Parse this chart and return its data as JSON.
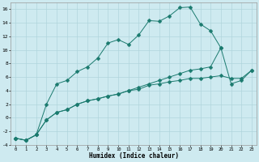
{
  "xlabel": "Humidex (Indice chaleur)",
  "background_color": "#ceeaf0",
  "grid_color": "#b0d5dc",
  "line_color": "#1a7a6e",
  "x_values": [
    0,
    1,
    2,
    3,
    4,
    5,
    6,
    7,
    8,
    9,
    10,
    11,
    12,
    13,
    14,
    15,
    16,
    17,
    18,
    19,
    20,
    21,
    22,
    23
  ],
  "line1": [
    -3.0,
    -3.3,
    -2.5,
    2.0,
    5.0,
    5.5,
    6.8,
    7.5,
    8.8,
    11.0,
    11.5,
    10.8,
    12.2,
    14.3,
    14.2,
    15.0,
    16.2,
    16.3,
    13.8,
    12.8,
    10.3,
    null,
    null,
    null
  ],
  "line2": [
    -3.0,
    -3.3,
    -2.5,
    -0.3,
    0.8,
    1.2,
    2.0,
    2.5,
    2.8,
    3.2,
    3.5,
    4.0,
    4.5,
    5.0,
    5.5,
    6.0,
    6.5,
    7.0,
    7.2,
    7.5,
    10.3,
    5.0,
    5.5,
    7.0
  ],
  "line3": [
    -3.0,
    -3.3,
    -2.5,
    -0.3,
    0.8,
    1.2,
    2.0,
    2.5,
    2.8,
    3.2,
    3.5,
    4.0,
    4.2,
    4.8,
    5.0,
    5.3,
    5.5,
    5.8,
    5.8,
    6.0,
    6.2,
    5.8,
    5.8,
    7.0
  ],
  "ylim": [
    -4,
    17
  ],
  "xlim": [
    -0.5,
    23.5
  ],
  "yticks": [
    -4,
    -2,
    0,
    2,
    4,
    6,
    8,
    10,
    12,
    14,
    16
  ],
  "xticks": [
    0,
    1,
    2,
    3,
    4,
    5,
    6,
    7,
    8,
    9,
    10,
    11,
    12,
    13,
    14,
    15,
    16,
    17,
    18,
    19,
    20,
    21,
    22,
    23
  ],
  "marker": "D",
  "marker_size": 2.5,
  "linewidth": 0.7
}
